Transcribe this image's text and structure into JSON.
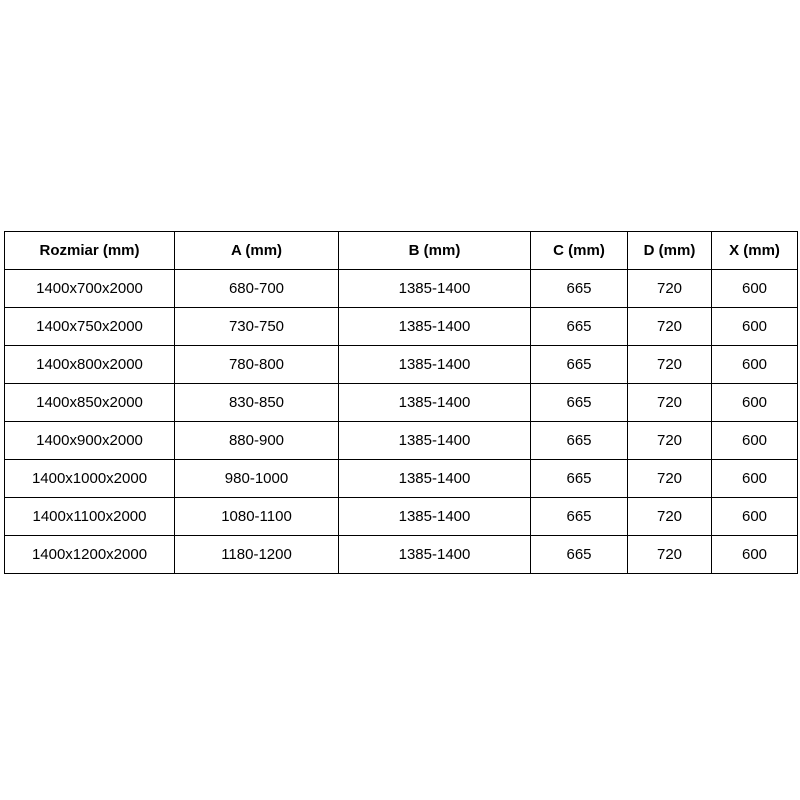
{
  "table": {
    "headers": [
      "Rozmiar (mm)",
      "A (mm)",
      "B (mm)",
      "C (mm)",
      "D (mm)",
      "X (mm)"
    ],
    "rows": [
      [
        "1400x700x2000",
        "680-700",
        "1385-1400",
        "665",
        "720",
        "600"
      ],
      [
        "1400x750x2000",
        "730-750",
        "1385-1400",
        "665",
        "720",
        "600"
      ],
      [
        "1400x800x2000",
        "780-800",
        "1385-1400",
        "665",
        "720",
        "600"
      ],
      [
        "1400x850x2000",
        "830-850",
        "1385-1400",
        "665",
        "720",
        "600"
      ],
      [
        "1400x900x2000",
        "880-900",
        "1385-1400",
        "665",
        "720",
        "600"
      ],
      [
        "1400x1000x2000",
        "980-1000",
        "1385-1400",
        "665",
        "720",
        "600"
      ],
      [
        "1400x1100x2000",
        "1080-1100",
        "1385-1400",
        "665",
        "720",
        "600"
      ],
      [
        "1400x1200x2000",
        "1180-1200",
        "1385-1400",
        "665",
        "720",
        "600"
      ]
    ]
  }
}
